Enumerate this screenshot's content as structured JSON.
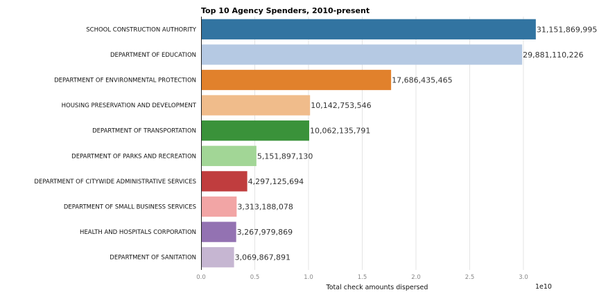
{
  "chart_data": {
    "type": "bar",
    "orientation": "horizontal",
    "title": "Top 10 Agency Spenders, 2010-present",
    "xlabel": "Total check amounts dispersed",
    "x_scale_label": "1e10",
    "xlim": [
      0,
      32000000000.0
    ],
    "x_ticks": [
      0,
      5000000000.0,
      10000000000.0,
      15000000000.0,
      20000000000.0,
      25000000000.0,
      30000000000.0
    ],
    "x_tick_labels": [
      "0.0",
      "0.5",
      "1.0",
      "1.5",
      "2.0",
      "2.5",
      "3.0"
    ],
    "grid": true,
    "categories": [
      "SCHOOL CONSTRUCTION AUTHORITY",
      "DEPARTMENT OF EDUCATION",
      "DEPARTMENT OF ENVIRONMENTAL PROTECTION",
      "HOUSING PRESERVATION AND DEVELOPMENT",
      "DEPARTMENT OF TRANSPORTATION",
      "DEPARTMENT OF PARKS AND RECREATION",
      "DEPARTMENT OF CITYWIDE ADMINISTRATIVE SERVICES",
      "DEPARTMENT OF SMALL BUSINESS SERVICES",
      "HEALTH AND HOSPITALS CORPORATION",
      "DEPARTMENT OF SANITATION"
    ],
    "values": [
      31151869995,
      29881110226,
      17686435465,
      10142753546,
      10062135791,
      5151897130,
      4297125694,
      3313188078,
      3267979869,
      3069867891
    ],
    "value_labels": [
      "31,151,869,995",
      "29,881,110,226",
      "17,686,435,465",
      "10,142,753,546",
      "10,062,135,791",
      "5,151,897,130",
      "4,297,125,694",
      "3,313,188,078",
      "3,267,979,869",
      "3,069,867,891"
    ],
    "colors": [
      "#3274a1",
      "#b5c9e3",
      "#e1812c",
      "#f0bc8b",
      "#3a923a",
      "#a2d696",
      "#c03d3e",
      "#f2a5a5",
      "#9372b2",
      "#c6b6d2"
    ]
  }
}
